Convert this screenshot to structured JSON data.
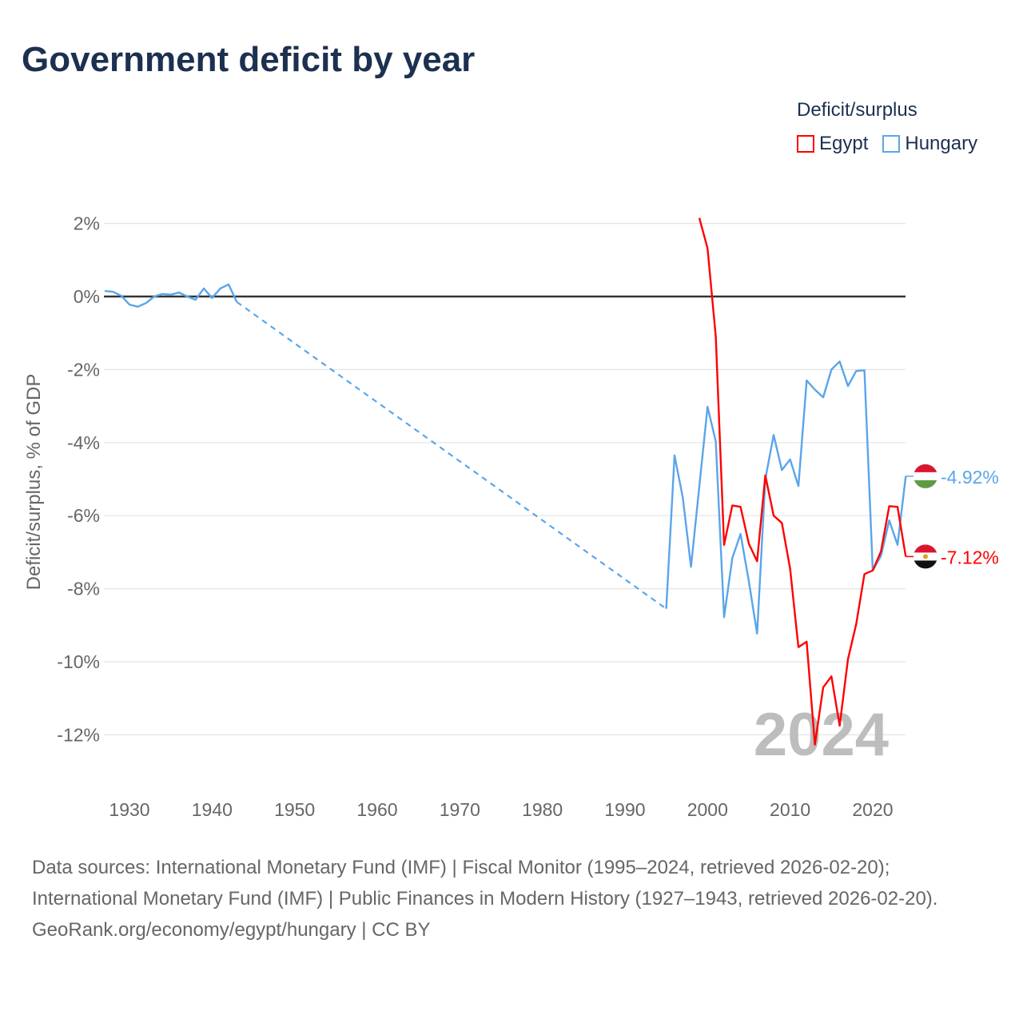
{
  "title": "Government deficit by year",
  "legend": {
    "title": "Deficit/surplus",
    "items": [
      {
        "label": "Egypt",
        "color": "#ff0000"
      },
      {
        "label": "Hungary",
        "color": "#5aa5ea"
      }
    ]
  },
  "chart_data": {
    "type": "line",
    "title": "Government deficit by year",
    "ylabel": "Deficit/surplus, % of GDP",
    "xlim": [
      1927,
      2024
    ],
    "ylim": [
      -13,
      2.5
    ],
    "xticks": [
      "1930",
      "1940",
      "1950",
      "1960",
      "1970",
      "1980",
      "1990",
      "2000",
      "2010",
      "2020"
    ],
    "yticks": [
      "2%",
      "0%",
      "-2%",
      "-4%",
      "-6%",
      "-8%",
      "-10%",
      "-12%"
    ],
    "year_label": "2024",
    "series": [
      {
        "name": "Hungary",
        "color": "#5aa5ea",
        "end_label": "-4.92%",
        "x": [
          1927,
          1928,
          1929,
          1930,
          1931,
          1932,
          1933,
          1934,
          1935,
          1936,
          1937,
          1938,
          1939,
          1940,
          1941,
          1942,
          1943,
          1995,
          1996,
          1997,
          1998,
          1999,
          2000,
          2001,
          2002,
          2003,
          2004,
          2005,
          2006,
          2007,
          2008,
          2009,
          2010,
          2011,
          2012,
          2013,
          2014,
          2015,
          2016,
          2017,
          2018,
          2019,
          2020,
          2021,
          2022,
          2023,
          2024
        ],
        "y": [
          0.15,
          0.13,
          0.02,
          -0.22,
          -0.28,
          -0.18,
          0,
          0.07,
          0.05,
          0.11,
          0,
          -0.09,
          0.22,
          -0.04,
          0.22,
          0.33,
          -0.15,
          -8.55,
          -4.35,
          -5.5,
          -7.4,
          -5.2,
          -3.02,
          -3.97,
          -8.78,
          -7.16,
          -6.5,
          -7.8,
          -9.23,
          -5.0,
          -3.79,
          -4.75,
          -4.46,
          -5.19,
          -2.3,
          -2.55,
          -2.76,
          -2.0,
          -1.78,
          -2.45,
          -2.04,
          -2.02,
          -7.5,
          -7.1,
          -6.13,
          -6.8,
          -4.92
        ]
      },
      {
        "name": "Egypt",
        "color": "#ff0000",
        "end_label": "-7.12%",
        "x": [
          1999,
          2000,
          2001,
          2002,
          2003,
          2004,
          2005,
          2006,
          2007,
          2008,
          2009,
          2010,
          2011,
          2012,
          2013,
          2014,
          2015,
          2016,
          2017,
          2018,
          2019,
          2020,
          2021,
          2022,
          2023,
          2024
        ],
        "y": [
          2.15,
          1.32,
          -1.1,
          -6.8,
          -5.72,
          -5.76,
          -6.77,
          -7.25,
          -4.9,
          -6.0,
          -6.2,
          -7.45,
          -9.6,
          -9.45,
          -12.27,
          -10.7,
          -10.4,
          -11.75,
          -9.93,
          -8.97,
          -7.6,
          -7.5,
          -6.98,
          -5.74,
          -5.76,
          -7.12
        ]
      }
    ]
  },
  "footer": {
    "sources": "Data sources: International Monetary Fund (IMF) | Fiscal Monitor (1995–2024, retrieved 2026-02-20); International Monetary Fund (IMF) | Public Finances in Modern History (1927–1943, retrieved 2026-02-20).",
    "credit": "GeoRank.org/economy/egypt/hungary | CC BY"
  }
}
